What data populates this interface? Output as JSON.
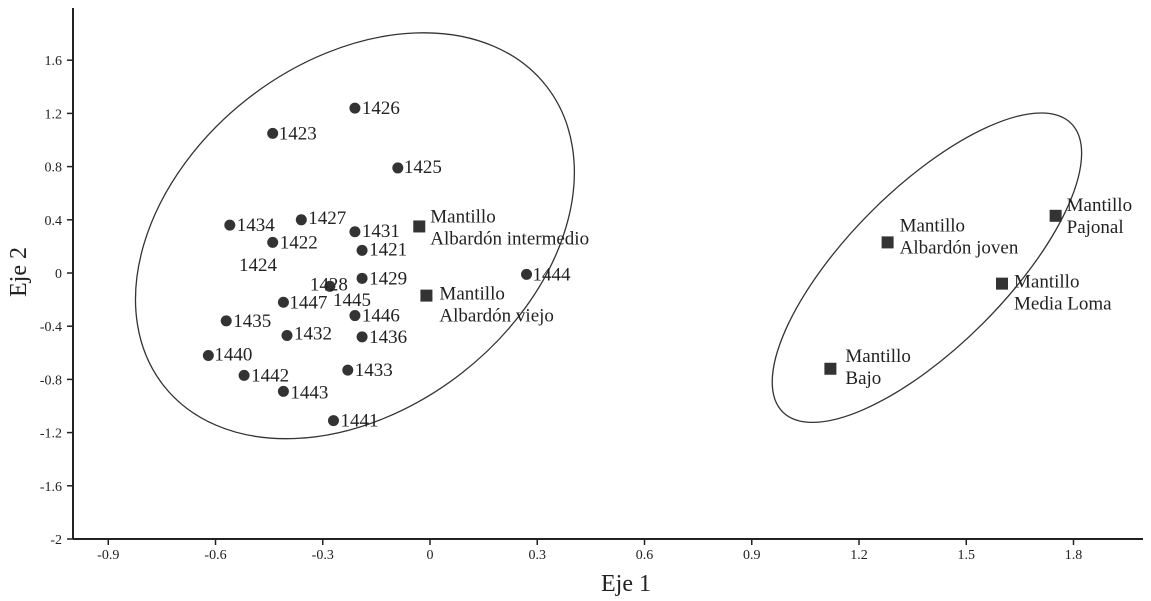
{
  "chart_data": {
    "type": "scatter",
    "xlabel": "Eje 1",
    "ylabel": "Eje 2",
    "xlim": [
      -1.0,
      2.0
    ],
    "ylim": [
      -2.0,
      2.0
    ],
    "xticks": [
      "-0.9",
      "-0.6",
      "-0.3",
      "0",
      "0.3",
      "0.6",
      "0.9",
      "1.2",
      "1.5",
      "1.8"
    ],
    "yticks": [
      "1.6",
      "1.2",
      "0.8",
      "0.4",
      "0",
      "-0.4",
      "-0.8",
      "-1.2",
      "-1.6",
      "-2"
    ],
    "grid": false,
    "series": [
      {
        "marker": "circle",
        "color": "#333333",
        "points": [
          {
            "label": "1426",
            "x": -0.21,
            "y": 1.24
          },
          {
            "label": "1423",
            "x": -0.44,
            "y": 1.05
          },
          {
            "label": "1425",
            "x": -0.09,
            "y": 0.79
          },
          {
            "label": "1434",
            "x": -0.56,
            "y": 0.36
          },
          {
            "label": "1427",
            "x": -0.36,
            "y": 0.4
          },
          {
            "label": "1431",
            "x": -0.21,
            "y": 0.31
          },
          {
            "label": "1422",
            "x": -0.44,
            "y": 0.23
          },
          {
            "label": "1421",
            "x": -0.19,
            "y": 0.17
          },
          {
            "label": "1424",
            "x": null,
            "y": null
          },
          {
            "label": "1428",
            "x": -0.28,
            "y": -0.1
          },
          {
            "label": "1429",
            "x": -0.19,
            "y": -0.04
          },
          {
            "label": "1444",
            "x": 0.27,
            "y": -0.01
          },
          {
            "label": "1447",
            "x": -0.41,
            "y": -0.22
          },
          {
            "label": "1445",
            "x": null,
            "y": null
          },
          {
            "label": "1435",
            "x": -0.57,
            "y": -0.36
          },
          {
            "label": "1446",
            "x": -0.21,
            "y": -0.32
          },
          {
            "label": "1432",
            "x": -0.4,
            "y": -0.47
          },
          {
            "label": "1436",
            "x": -0.19,
            "y": -0.48
          },
          {
            "label": "1440",
            "x": -0.62,
            "y": -0.62
          },
          {
            "label": "1442",
            "x": -0.52,
            "y": -0.77
          },
          {
            "label": "1433",
            "x": -0.23,
            "y": -0.73
          },
          {
            "label": "1443",
            "x": -0.41,
            "y": -0.89
          },
          {
            "label": "1441",
            "x": -0.27,
            "y": -1.11
          }
        ]
      },
      {
        "marker": "square",
        "color": "#333333",
        "points": [
          {
            "label": [
              "Mantillo",
              "Albardón intermedio"
            ],
            "x": -0.03,
            "y": 0.35
          },
          {
            "label": [
              "Mantillo",
              "Albardón viejo"
            ],
            "x": -0.01,
            "y": -0.17
          },
          {
            "label": [
              "Mantillo",
              "Albardón joven"
            ],
            "x": 1.28,
            "y": 0.23
          },
          {
            "label": [
              "Mantillo",
              "Pajonal"
            ],
            "x": 1.75,
            "y": 0.43
          },
          {
            "label": [
              "Mantillo",
              "Media Loma"
            ],
            "x": 1.6,
            "y": -0.08
          },
          {
            "label": [
              "Mantillo",
              "Bajo"
            ],
            "x": 1.12,
            "y": -0.72
          }
        ]
      }
    ],
    "ellipses": [
      {
        "center_x": -0.21,
        "center_y": 0.28,
        "color": "#333333"
      },
      {
        "center_x": 1.39,
        "center_y": 0.04,
        "color": "#333333"
      }
    ]
  }
}
